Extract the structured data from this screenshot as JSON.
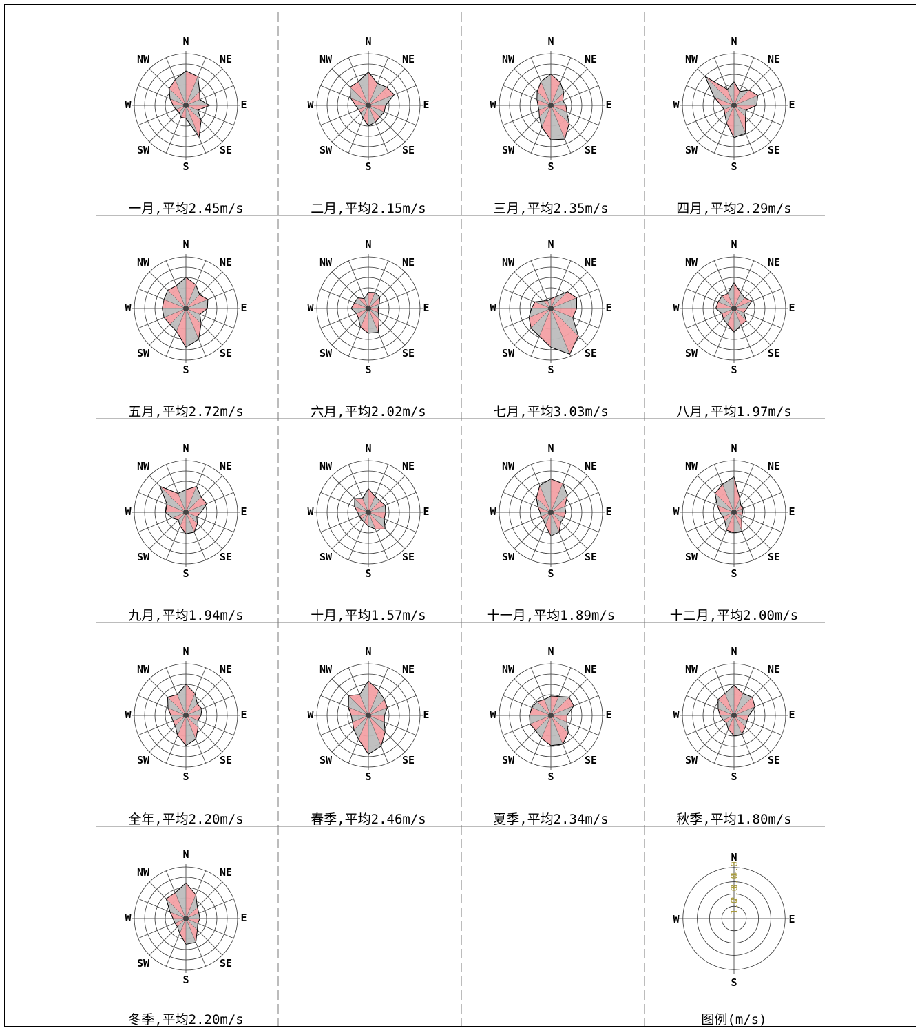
{
  "directions": [
    "N",
    "NE",
    "E",
    "SE",
    "S",
    "SW",
    "W",
    "NW"
  ],
  "colors": {
    "pink": "#f3a0a4",
    "gray": "#bdbdbd",
    "grid": "#333333",
    "outline": "#000000",
    "legend_ticks": "#a89a3a"
  },
  "chart_data": [
    {
      "type": "radar",
      "label": "一月,平均2.45m/s",
      "values": [
        3.2,
        2.9,
        1.8,
        1.4,
        2.2,
        1.2,
        2.0,
        3.2,
        1.2,
        1.2,
        0.9,
        1.0,
        1.2,
        1.6,
        2.2,
        2.6
      ]
    },
    {
      "type": "radar",
      "label": "二月,平均2.15m/s",
      "values": [
        3.1,
        2.2,
        2.4,
        2.6,
        1.6,
        1.6,
        1.5,
        1.7,
        1.9,
        1.3,
        1.0,
        1.0,
        1.2,
        1.8,
        2.4,
        2.4
      ]
    },
    {
      "type": "radar",
      "label": "三月,平均2.35m/s",
      "values": [
        2.9,
        2.3,
        1.7,
        1.2,
        1.4,
        1.6,
        2.4,
        3.4,
        3.2,
        2.2,
        1.5,
        1.2,
        1.2,
        1.4,
        1.8,
        2.4
      ]
    },
    {
      "type": "radar",
      "label": "四月,平均2.29m/s",
      "values": [
        2.2,
        1.4,
        2.0,
        2.4,
        2.1,
        1.2,
        1.5,
        2.8,
        3.0,
        1.8,
        1.2,
        1.0,
        1.2,
        2.0,
        3.8,
        1.6
      ]
    },
    {
      "type": "radar",
      "label": "五月,平均2.72m/s",
      "values": [
        2.9,
        2.4,
        1.8,
        2.2,
        2.0,
        1.4,
        2.0,
        3.1,
        3.6,
        2.3,
        2.1,
        2.2,
        2.2,
        2.2,
        2.4,
        2.3
      ]
    },
    {
      "type": "radar",
      "label": "六月,平均2.02m/s",
      "values": [
        1.5,
        1.6,
        1.5,
        1.1,
        0.9,
        1.0,
        1.4,
        2.4,
        2.3,
        1.9,
        1.3,
        1.2,
        1.6,
        1.4,
        1.4,
        1.0
      ]
    },
    {
      "type": "radar",
      "label": "七月,平均3.03m/s",
      "values": [
        0.9,
        1.2,
        2.2,
        2.6,
        2.4,
        2.2,
        3.6,
        4.6,
        3.6,
        2.8,
        2.6,
        2.2,
        1.8,
        1.6,
        1.0,
        0.8
      ]
    },
    {
      "type": "radar",
      "label": "八月,平均1.97m/s",
      "values": [
        2.4,
        1.6,
        1.4,
        1.8,
        1.2,
        1.0,
        1.6,
        1.7,
        2.2,
        1.6,
        1.4,
        1.2,
        1.7,
        1.6,
        1.6,
        1.5
      ]
    },
    {
      "type": "radar",
      "label": "九月,平均1.94m/s",
      "values": [
        2.1,
        2.6,
        2.0,
        2.1,
        1.4,
        1.1,
        1.5,
        2.0,
        2.0,
        1.4,
        1.0,
        1.4,
        1.9,
        1.9,
        3.4,
        1.9
      ]
    },
    {
      "type": "radar",
      "label": "十月,平均1.57m/s",
      "values": [
        2.2,
        1.6,
        1.5,
        1.7,
        1.6,
        1.6,
        2.2,
        1.7,
        1.3,
        1.0,
        0.9,
        0.9,
        1.0,
        1.4,
        1.8,
        1.4
      ]
    },
    {
      "type": "radar",
      "label": "十一月,平均1.89m/s",
      "values": [
        3.1,
        2.9,
        2.2,
        1.4,
        1.4,
        1.3,
        1.3,
        2.0,
        2.2,
        1.3,
        1.0,
        1.0,
        1.0,
        1.3,
        1.9,
        2.7
      ]
    },
    {
      "type": "radar",
      "label": "十二月,平均2.00m/s",
      "values": [
        3.3,
        1.4,
        0.9,
        0.9,
        0.8,
        0.8,
        1.0,
        1.9,
        1.9,
        1.8,
        1.2,
        1.1,
        1.3,
        1.7,
        2.5,
        2.8
      ]
    },
    {
      "type": "radar",
      "label": "全年,平均2.20m/s",
      "values": [
        2.9,
        2.2,
        1.5,
        1.6,
        1.4,
        1.2,
        1.6,
        2.4,
        2.8,
        2.0,
        1.4,
        1.3,
        1.4,
        1.8,
        2.4,
        2.1
      ]
    },
    {
      "type": "radar",
      "label": "春季,平均2.46m/s",
      "values": [
        3.2,
        2.5,
        2.1,
        1.9,
        1.5,
        1.6,
        2.2,
        3.1,
        3.6,
        2.4,
        1.9,
        1.6,
        1.6,
        2.0,
        2.6,
        2.1
      ]
    },
    {
      "type": "radar",
      "label": "夏季,平均2.34m/s",
      "values": [
        1.8,
        1.9,
        2.4,
        2.3,
        1.5,
        1.6,
        2.3,
        2.9,
        2.8,
        2.3,
        2.0,
        2.1,
        2.0,
        1.9,
        1.8,
        1.6
      ]
    },
    {
      "type": "radar",
      "label": "秋季,平均1.80m/s",
      "values": [
        2.8,
        2.2,
        2.4,
        2.1,
        1.4,
        1.3,
        1.5,
        1.9,
        1.9,
        1.4,
        1.0,
        1.1,
        1.3,
        1.6,
        2.1,
        2.2
      ]
    },
    {
      "type": "radar",
      "label": "冬季,平均2.20m/s",
      "values": [
        3.3,
        2.4,
        1.5,
        1.3,
        1.3,
        1.2,
        1.5,
        2.4,
        2.4,
        1.5,
        1.1,
        1.1,
        1.2,
        1.6,
        2.6,
        2.6
      ]
    }
  ],
  "legend": {
    "label": "图例(m/s)",
    "directions": [
      "N",
      "E",
      "S",
      "W"
    ],
    "ticks": [
      "1.0",
      "2.0",
      "3.0",
      "4.0"
    ]
  }
}
